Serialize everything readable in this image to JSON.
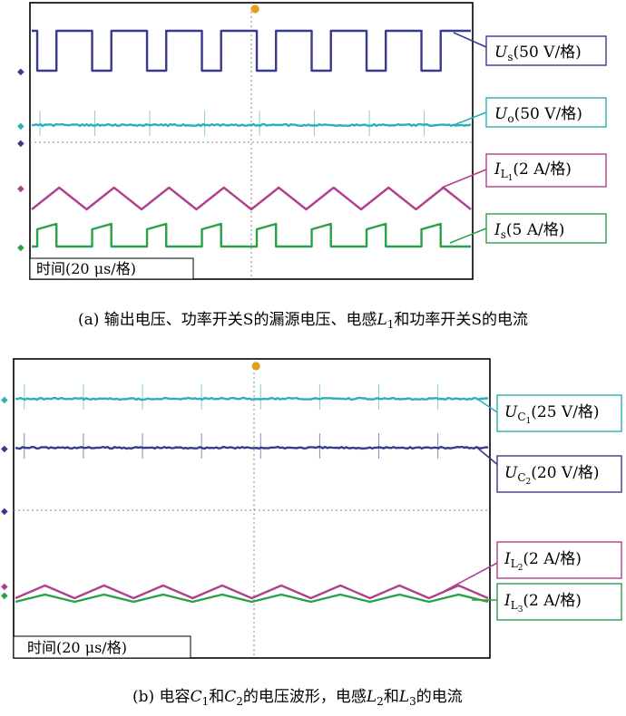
{
  "chart_data": [
    {
      "type": "line",
      "panel_label": "(a)",
      "caption": "(a) 输出电压、功率开关S的漏源电压、电感L1和功率开关S的电流",
      "time_box": "时间(20 μs/格)",
      "series": [
        {
          "name": "Us",
          "label": "Us(50 V/格)",
          "color": "#3a3a8c",
          "waveform": "square",
          "wave_count": 8
        },
        {
          "name": "Uo",
          "label": "Uo(50 V/格)",
          "color": "#2bb0b8",
          "waveform": "flat",
          "wave_count": 8
        },
        {
          "name": "IL1",
          "label": "IL1(2 A/格)",
          "color": "#b0408e",
          "waveform": "triangle",
          "wave_count": 8
        },
        {
          "name": "Is",
          "label": "Is(5 A/格)",
          "color": "#2aa048",
          "waveform": "sawtooth",
          "wave_count": 8
        }
      ]
    },
    {
      "type": "line",
      "panel_label": "(b)",
      "caption": "(b) 电容C1和C2的电压波形，电感L2和L3的电流",
      "time_box": "时间(20 μs/格)",
      "series": [
        {
          "name": "UC1",
          "label": "UC1(25 V/格)",
          "color": "#2bb0b8",
          "waveform": "flat",
          "wave_count": 8
        },
        {
          "name": "UC2",
          "label": "UC2(20 V/格)",
          "color": "#3a3a8c",
          "waveform": "flat",
          "wave_count": 8
        },
        {
          "name": "IL2",
          "label": "IL2(2 A/格)",
          "color": "#b0408e",
          "waveform": "triangle",
          "wave_count": 8
        },
        {
          "name": "IL3",
          "label": "IL3(2 A/格)",
          "color": "#2aa048",
          "waveform": "triangle",
          "wave_count": 8
        }
      ]
    }
  ],
  "labels": {
    "a": {
      "Us": {
        "main": "U",
        "sub": "s",
        "rest": "(50 V/格)"
      },
      "Uo": {
        "main": "U",
        "sub": "o",
        "rest": "(50 V/格)"
      },
      "IL1": {
        "main": "I",
        "sub": "L",
        "subsub": "1",
        "rest": "(2 A/格)"
      },
      "Is": {
        "main": "I",
        "sub": "s",
        "rest": "(5 A/格)"
      }
    },
    "b": {
      "UC1": {
        "main": "U",
        "sub": "C",
        "subsub": "1",
        "rest": "(25 V/格)"
      },
      "UC2": {
        "main": "U",
        "sub": "C",
        "subsub": "2",
        "rest": "(20 V/格)"
      },
      "IL2": {
        "main": "I",
        "sub": "L",
        "subsub": "2",
        "rest": "(2 A/格)"
      },
      "IL3": {
        "main": "I",
        "sub": "L",
        "subsub": "3",
        "rest": "(2 A/格)"
      }
    }
  },
  "captions": {
    "a": {
      "p1": "(a) 输出电压、功率开关S的漏源电压、电感",
      "l": "L",
      "l_sub": "1",
      "p2": "和功率开关S的电流"
    },
    "b": {
      "p1": "(b) 电容",
      "c1": "C",
      "c1_sub": "1",
      "and": "和",
      "c2": "C",
      "c2_sub": "2",
      "p2": "的电压波形，电感",
      "l2": "L",
      "l2_sub": "2",
      "and2": "和",
      "l3": "L",
      "l3_sub": "3",
      "p3": "的电流"
    }
  }
}
